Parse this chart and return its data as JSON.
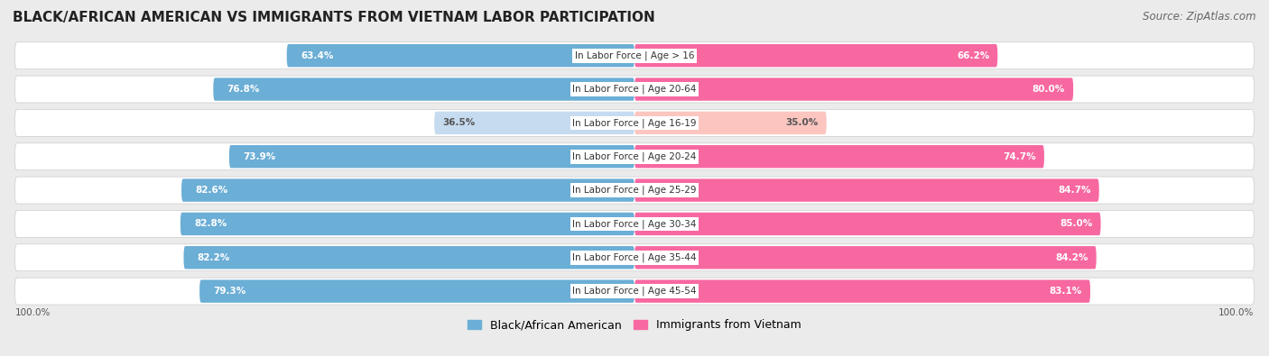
{
  "title": "BLACK/AFRICAN AMERICAN VS IMMIGRANTS FROM VIETNAM LABOR PARTICIPATION",
  "source": "Source: ZipAtlas.com",
  "categories": [
    "In Labor Force | Age > 16",
    "In Labor Force | Age 20-64",
    "In Labor Force | Age 16-19",
    "In Labor Force | Age 20-24",
    "In Labor Force | Age 25-29",
    "In Labor Force | Age 30-34",
    "In Labor Force | Age 35-44",
    "In Labor Force | Age 45-54"
  ],
  "black_values": [
    63.4,
    76.8,
    36.5,
    73.9,
    82.6,
    82.8,
    82.2,
    79.3
  ],
  "vietnam_values": [
    66.2,
    80.0,
    35.0,
    74.7,
    84.7,
    85.0,
    84.2,
    83.1
  ],
  "black_color": "#6baed6",
  "black_color_light": "#c6dbef",
  "vietnam_color": "#f768a1",
  "vietnam_color_light": "#fcc5c0",
  "row_bg_color": "#f5f5f5",
  "outer_bg_color": "#e8e8e8",
  "fig_bg_color": "#ebebeb",
  "max_value": 100.0,
  "figsize": [
    14.06,
    3.95
  ],
  "dpi": 100,
  "legend_label_black": "Black/African American",
  "legend_label_vietnam": "Immigrants from Vietnam",
  "title_fontsize": 11,
  "label_fontsize": 7.5,
  "source_fontsize": 8.5
}
